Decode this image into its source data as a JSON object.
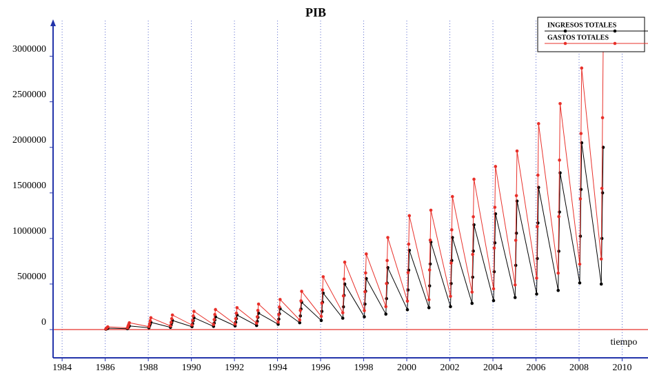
{
  "chart_data": {
    "type": "line",
    "title": "PIB",
    "xlabel": "tiempo",
    "xlim": [
      1983.58,
      2011.2
    ],
    "ylim": [
      -310000,
      3390000
    ],
    "xticks": [
      1984,
      1986,
      1988,
      1990,
      1992,
      1994,
      1996,
      1998,
      2000,
      2002,
      2004,
      2006,
      2008,
      2010
    ],
    "yticks": [
      0,
      500000,
      1000000,
      1500000,
      2000000,
      2500000,
      3000000
    ],
    "grid": true,
    "legend": "upper right",
    "x": [
      1986.03,
      1986.06,
      1986.09,
      1986.12,
      1987.03,
      1987.06,
      1987.09,
      1987.12,
      1988.03,
      1988.06,
      1988.09,
      1988.12,
      1989.03,
      1989.06,
      1989.09,
      1989.12,
      1990.03,
      1990.06,
      1990.09,
      1990.12,
      1991.03,
      1991.06,
      1991.09,
      1991.12,
      1992.03,
      1992.06,
      1992.09,
      1992.12,
      1993.03,
      1993.06,
      1993.09,
      1993.12,
      1994.03,
      1994.06,
      1994.09,
      1994.12,
      1995.03,
      1995.06,
      1995.09,
      1995.12,
      1996.03,
      1996.06,
      1996.09,
      1996.12,
      1997.03,
      1997.06,
      1997.09,
      1997.12,
      1998.03,
      1998.06,
      1998.09,
      1998.12,
      1999.03,
      1999.06,
      1999.09,
      1999.12,
      2000.03,
      2000.06,
      2000.09,
      2000.12,
      2001.03,
      2001.06,
      2001.09,
      2001.12,
      2002.03,
      2002.06,
      2002.09,
      2002.12,
      2003.03,
      2003.06,
      2003.09,
      2003.12,
      2004.03,
      2004.06,
      2004.09,
      2004.12,
      2005.03,
      2005.06,
      2005.09,
      2005.12,
      2006.03,
      2006.06,
      2006.09,
      2006.12,
      2007.03,
      2007.06,
      2007.09,
      2007.12,
      2008.03,
      2008.06,
      2008.09,
      2008.12,
      2009.03,
      2009.06,
      2009.09,
      2009.12
    ],
    "series": [
      {
        "name": "INGRESOS TOTALES",
        "color": "#000000",
        "values": [
          4000,
          8000,
          11000,
          15000,
          10000,
          20000,
          30000,
          40000,
          20000,
          40000,
          60000,
          80000,
          25000,
          50000,
          75000,
          100000,
          32000,
          65000,
          98000,
          130000,
          35000,
          70000,
          105000,
          140000,
          40000,
          80000,
          120000,
          160000,
          45000,
          90000,
          135000,
          180000,
          58000,
          115000,
          172000,
          230000,
          75000,
          150000,
          225000,
          300000,
          100000,
          200000,
          300000,
          400000,
          125000,
          250000,
          375000,
          500000,
          140000,
          280000,
          420000,
          560000,
          170000,
          340000,
          510000,
          680000,
          218000,
          435000,
          652000,
          870000,
          240000,
          480000,
          720000,
          960000,
          252000,
          505000,
          758000,
          1010000,
          288000,
          575000,
          862000,
          1150000,
          318000,
          635000,
          952000,
          1270000,
          352000,
          705000,
          1058000,
          1410000,
          390000,
          780000,
          1170000,
          1560000,
          430000,
          860000,
          1290000,
          1720000,
          512000,
          1025000,
          1538000,
          2050000,
          500000,
          1000000,
          1500000,
          2000000
        ]
      },
      {
        "name": "GASTOS TOTALES",
        "color": "#e8302a",
        "values": [
          7500,
          15000,
          22500,
          30000,
          19000,
          38000,
          56000,
          75000,
          32000,
          65000,
          98000,
          130000,
          40000,
          80000,
          120000,
          160000,
          50000,
          100000,
          150000,
          200000,
          55000,
          110000,
          165000,
          220000,
          60000,
          120000,
          180000,
          240000,
          70000,
          140000,
          210000,
          280000,
          82000,
          165000,
          248000,
          330000,
          105000,
          210000,
          315000,
          420000,
          145000,
          290000,
          435000,
          580000,
          185000,
          370000,
          555000,
          740000,
          208000,
          415000,
          622000,
          830000,
          252000,
          505000,
          758000,
          1010000,
          312000,
          625000,
          938000,
          1250000,
          328000,
          655000,
          982000,
          1310000,
          365000,
          730000,
          1095000,
          1460000,
          412000,
          825000,
          1238000,
          1650000,
          448000,
          895000,
          1342000,
          1790000,
          490000,
          980000,
          1470000,
          1960000,
          565000,
          1130000,
          1695000,
          2260000,
          620000,
          1240000,
          1860000,
          2480000,
          718000,
          1435000,
          2152000,
          2870000,
          775000,
          1550000,
          2325000,
          3100000
        ]
      }
    ]
  }
}
